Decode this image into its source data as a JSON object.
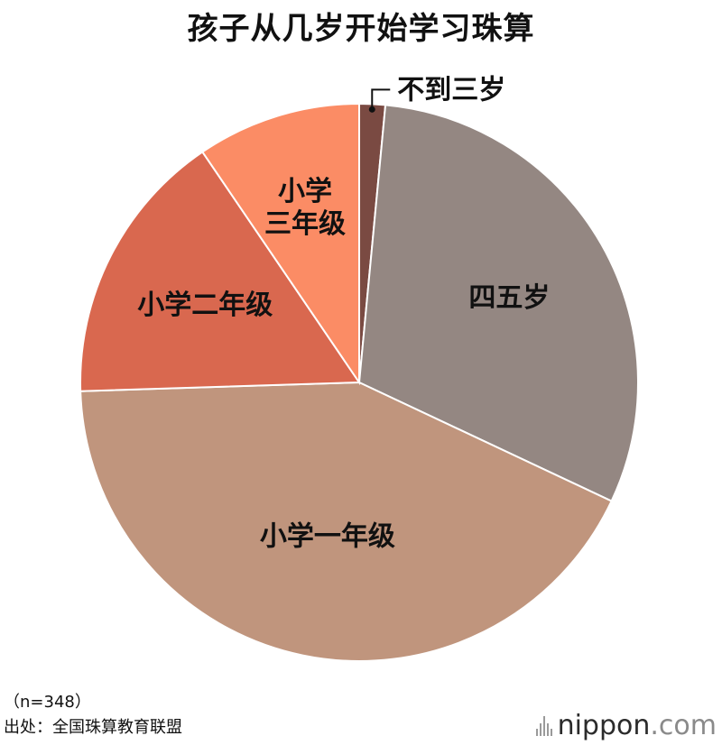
{
  "chart_data": {
    "type": "pie",
    "title": "孩子从几岁开始学习珠算",
    "slices": [
      {
        "label": "不到三岁",
        "value": 1.5,
        "color": "#7a4a42"
      },
      {
        "label": "四五岁",
        "value": 30.5,
        "color": "#948782"
      },
      {
        "label": "小学一年级",
        "value": 42.5,
        "color": "#c0957d"
      },
      {
        "label": "小学二年级",
        "value": 16.0,
        "color": "#d9684f"
      },
      {
        "label": "小学\n三年级",
        "value": 9.5,
        "color": "#fb8c65"
      }
    ],
    "start_angle": "12 o'clock",
    "direction": "clockwise"
  },
  "notes": {
    "sample": "（n=348）",
    "source": "出处：全国珠算教育联盟"
  },
  "brand": {
    "name": "nippon",
    "suffix": ".com"
  }
}
